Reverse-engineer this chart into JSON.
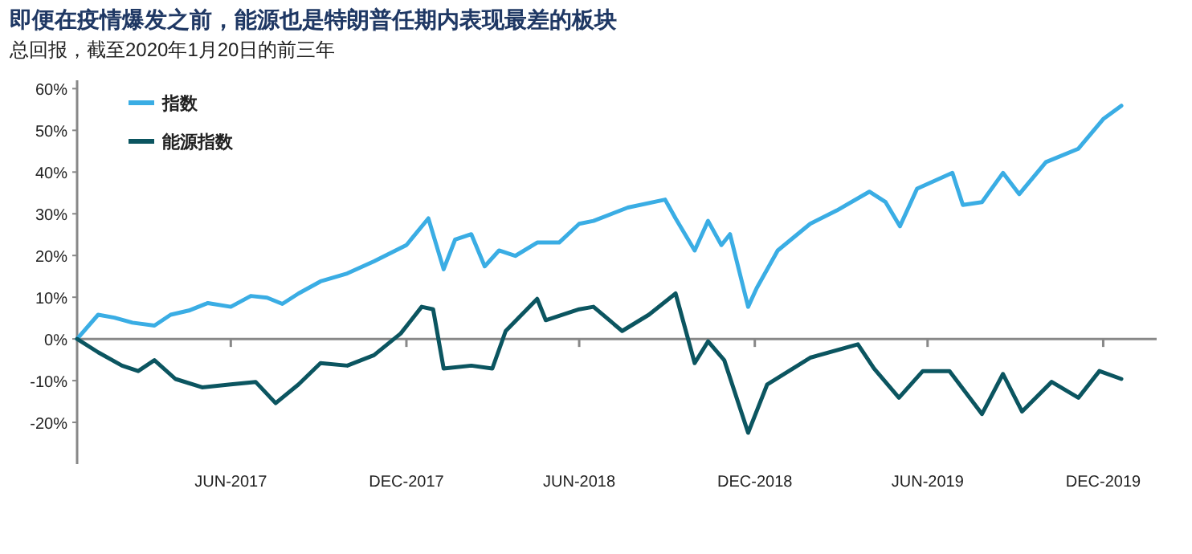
{
  "chart_data": {
    "type": "line",
    "title": "即便在疫情爆发之前，能源也是特朗普任期内表现最差的板块",
    "subtitle": "总回报，截至2020年1月20日的前三年",
    "x": [
      "2017-01-20",
      "2017-02-11",
      "2017-02-28",
      "2017-03-19",
      "2017-04-11",
      "2017-04-28",
      "2017-05-17",
      "2017-06-06",
      "2017-06-30",
      "2017-07-21",
      "2017-08-07",
      "2017-08-23",
      "2017-09-09",
      "2017-10-02",
      "2017-10-30",
      "2017-11-27",
      "2017-12-31",
      "2018-01-23",
      "2018-02-08",
      "2018-02-20",
      "2018-03-09",
      "2018-03-23",
      "2018-04-07",
      "2018-04-24",
      "2018-05-17",
      "2018-06-09",
      "2018-06-30",
      "2018-07-15",
      "2018-08-20",
      "2018-09-28",
      "2018-10-09",
      "2018-10-29",
      "2018-11-12",
      "2018-11-26",
      "2018-12-05",
      "2018-12-24",
      "2019-01-02",
      "2019-01-24",
      "2019-02-27",
      "2019-03-27",
      "2019-04-30",
      "2019-05-17",
      "2019-06-01",
      "2019-06-19",
      "2019-07-26",
      "2019-08-06",
      "2019-08-26",
      "2019-09-17",
      "2019-10-04",
      "2019-11-01",
      "2019-12-05",
      "2019-12-31",
      "2020-01-19"
    ],
    "series": [
      {
        "name": "指数",
        "color": "#3aade4",
        "values": [
          0,
          5.8,
          5.1,
          3.9,
          3.2,
          5.8,
          6.8,
          8.6,
          7.7,
          10.3,
          9.9,
          8.4,
          10.9,
          13.8,
          15.7,
          18.6,
          22.5,
          28.9,
          16.7,
          23.8,
          25.1,
          17.4,
          21.2,
          19.9,
          23.1,
          23.1,
          27.6,
          28.3,
          31.5,
          33.4,
          28.9,
          21.2,
          28.3,
          22.5,
          25.1,
          7.7,
          12.2,
          21.2,
          27.6,
          30.8,
          35.3,
          32.8,
          27.0,
          36.0,
          39.8,
          32.1,
          32.8,
          39.8,
          34.7,
          42.4,
          45.6,
          52.7,
          55.9
        ]
      },
      {
        "name": "能源指数",
        "color": "#0b5560",
        "x": [
          "2017-01-20",
          "2017-02-11",
          "2017-03-08",
          "2017-03-25",
          "2017-04-11",
          "2017-05-03",
          "2017-05-31",
          "2017-06-30",
          "2017-07-26",
          "2017-08-16",
          "2017-09-09",
          "2017-10-02",
          "2017-10-30",
          "2017-11-27",
          "2017-12-25",
          "2018-01-16",
          "2018-01-28",
          "2018-02-08",
          "2018-03-09",
          "2018-03-31",
          "2018-04-14",
          "2018-05-17",
          "2018-05-26",
          "2018-06-30",
          "2018-07-15",
          "2018-08-14",
          "2018-09-11",
          "2018-10-09",
          "2018-10-29",
          "2018-11-12",
          "2018-11-29",
          "2018-12-24",
          "2019-01-13",
          "2019-02-27",
          "2019-04-18",
          "2019-05-05",
          "2019-05-31",
          "2019-06-25",
          "2019-07-23",
          "2019-08-26",
          "2019-09-17",
          "2019-10-07",
          "2019-11-07",
          "2019-12-05",
          "2019-12-27",
          "2020-01-19"
        ],
        "values": [
          0,
          -3.2,
          -6.4,
          -7.7,
          -5.1,
          -9.6,
          -11.6,
          -10.9,
          -10.3,
          -15.4,
          -10.9,
          -5.8,
          -6.4,
          -3.9,
          1.3,
          7.7,
          7.1,
          -7.1,
          -6.4,
          -7.1,
          1.9,
          9.6,
          4.5,
          7.1,
          7.7,
          1.9,
          5.8,
          10.9,
          -5.8,
          -0.6,
          -5.1,
          -22.5,
          -10.9,
          -4.5,
          -1.3,
          -7.1,
          -14.1,
          -7.7,
          -7.7,
          -18.0,
          -8.4,
          -17.4,
          -10.3,
          -14.1,
          -7.7,
          -9.6
        ]
      }
    ],
    "xlim": [
      "2017-01-20",
      "2020-02-25"
    ],
    "xticks": [
      {
        "value": "2017-06-30",
        "label": "JUN-2017"
      },
      {
        "value": "2017-12-31",
        "label": "DEC-2017"
      },
      {
        "value": "2018-06-30",
        "label": "JUN-2018"
      },
      {
        "value": "2018-12-31",
        "label": "DEC-2018"
      },
      {
        "value": "2019-06-30",
        "label": "JUN-2019"
      },
      {
        "value": "2019-12-31",
        "label": "DEC-2019"
      }
    ],
    "ylim": [
      -30,
      62
    ],
    "yticks": [
      {
        "value": -20,
        "label": "-20%"
      },
      {
        "value": -10,
        "label": "-10%"
      },
      {
        "value": 0,
        "label": "0%"
      },
      {
        "value": 10,
        "label": "10%"
      },
      {
        "value": 20,
        "label": "20%"
      },
      {
        "value": 30,
        "label": "30%"
      },
      {
        "value": 40,
        "label": "40%"
      },
      {
        "value": 50,
        "label": "50%"
      },
      {
        "value": 60,
        "label": "60%"
      }
    ],
    "legend": "top left",
    "line_style": "solid",
    "marker": "none"
  }
}
